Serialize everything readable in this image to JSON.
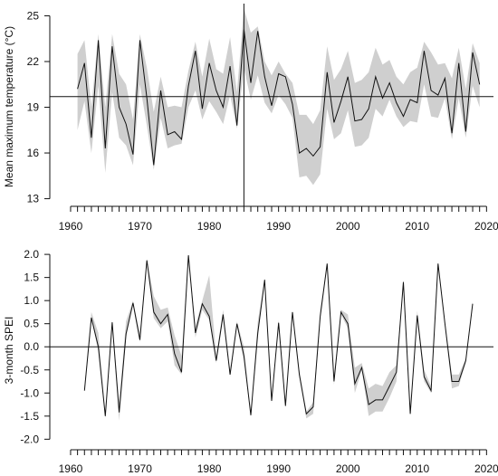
{
  "chart_data": [
    {
      "type": "line",
      "ylabel": "Mean maximum temperature (°C)",
      "xlabel": "",
      "xlim": [
        1957,
        2021
      ],
      "ylim": [
        12.5,
        25.8
      ],
      "y_ticks": [
        13,
        16,
        19,
        22,
        25
      ],
      "x_ticks": [
        1960,
        1970,
        1980,
        1990,
        2000,
        2010,
        2020
      ],
      "reference_hline": 19.7,
      "reference_vline": 1985,
      "band": "grey uncertainty band",
      "series": [
        {
          "x": [
            1961,
            1962,
            1963,
            1964,
            1965,
            1966,
            1967,
            1968,
            1969,
            1970,
            1971,
            1972,
            1973,
            1974,
            1975,
            1976,
            1977,
            1978,
            1979,
            1980,
            1981,
            1982,
            1983,
            1984,
            1985,
            1986,
            1987,
            1988,
            1989,
            1990,
            1991,
            1992,
            1993,
            1994,
            1995,
            1996,
            1997,
            1998,
            1999,
            2000,
            2001,
            2002,
            2003,
            2004,
            2005,
            2006,
            2007,
            2008,
            2009,
            2010,
            2011,
            2012,
            2013,
            2014,
            2015,
            2016,
            2017,
            2018,
            2019
          ],
          "values": [
            20.2,
            21.9,
            17.0,
            23.4,
            16.3,
            23.0,
            19.0,
            17.9,
            15.9,
            23.4,
            19.6,
            15.2,
            20.1,
            17.2,
            17.4,
            16.9,
            20.4,
            22.7,
            18.9,
            21.9,
            20.1,
            19.0,
            21.7,
            17.8,
            24.1,
            20.6,
            24.0,
            21.0,
            19.1,
            21.2,
            21.0,
            19.2,
            16.0,
            16.3,
            15.8,
            16.4,
            21.3,
            18.0,
            19.4,
            21.0,
            18.1,
            18.2,
            18.9,
            21.0,
            19.6,
            20.6,
            19.3,
            18.4,
            19.5,
            19.3,
            22.7,
            20.1,
            19.8,
            20.9,
            17.3,
            21.9,
            17.4,
            22.6,
            20.5
          ]
        }
      ],
      "band_lower": [
        17.5,
        19.4,
        16.0,
        20.4,
        14.7,
        20.0,
        17.0,
        16.5,
        15.2,
        20.5,
        17.8,
        14.9,
        18.3,
        16.3,
        16.5,
        16.6,
        19.0,
        20.1,
        18.2,
        19.4,
        18.7,
        17.9,
        19.8,
        17.6,
        21.6,
        19.5,
        21.1,
        19.3,
        18.6,
        19.8,
        19.2,
        18.3,
        14.4,
        14.5,
        13.9,
        14.6,
        18.9,
        16.9,
        17.3,
        18.8,
        16.4,
        16.5,
        17.0,
        18.9,
        18.4,
        19.5,
        18.4,
        17.7,
        18.1,
        18.0,
        20.5,
        18.4,
        18.3,
        19.6,
        16.9,
        19.6,
        17.0,
        20.4,
        19.0
      ],
      "band_upper": [
        22.5,
        23.4,
        19.0,
        23.8,
        19.0,
        23.8,
        21.2,
        20.5,
        18.2,
        23.8,
        21.6,
        18.7,
        21.0,
        19.0,
        19.1,
        19.0,
        21.4,
        23.3,
        21.0,
        23.5,
        21.5,
        21.2,
        23.6,
        20.0,
        25.5,
        23.9,
        24.3,
        22.0,
        21.1,
        22.0,
        21.2,
        20.6,
        18.5,
        18.5,
        17.9,
        18.8,
        23.0,
        20.8,
        21.5,
        22.7,
        20.6,
        20.8,
        21.3,
        22.9,
        21.8,
        22.1,
        21.0,
        20.5,
        21.3,
        21.6,
        23.3,
        22.6,
        21.8,
        21.9,
        20.9,
        22.9,
        20.2,
        23.2,
        21.9
      ]
    },
    {
      "type": "line",
      "ylabel": "3-month SPEI",
      "xlabel": "",
      "xlim": [
        1957,
        2021
      ],
      "ylim": [
        -2.15,
        2.1
      ],
      "y_ticks": [
        2.0,
        1.5,
        1.0,
        0.5,
        0.0,
        -0.5,
        -1.0,
        -1.5,
        -2.0
      ],
      "y_tick_labels": [
        "2.0",
        "1.5",
        "1.0",
        "0.5",
        "0.0",
        "-0.5",
        "-1.0",
        "-1.5",
        "-2.0"
      ],
      "x_ticks": [
        1960,
        1970,
        1980,
        1990,
        2000,
        2010,
        2020
      ],
      "reference_hline": 0.0,
      "band": "grey uncertainty band",
      "series": [
        {
          "x": [
            1962,
            1963,
            1964,
            1965,
            1966,
            1967,
            1968,
            1969,
            1970,
            1971,
            1972,
            1973,
            1974,
            1975,
            1976,
            1977,
            1978,
            1979,
            1980,
            1981,
            1982,
            1983,
            1984,
            1985,
            1986,
            1987,
            1988,
            1989,
            1990,
            1991,
            1992,
            1993,
            1994,
            1995,
            1996,
            1997,
            1998,
            1999,
            2000,
            2001,
            2002,
            2003,
            2004,
            2005,
            2006,
            2007,
            2008,
            2009,
            2010,
            2011,
            2012,
            2013,
            2014,
            2015,
            2016,
            2017,
            2018
          ],
          "values": [
            -0.95,
            0.63,
            0.0,
            -1.5,
            0.53,
            -1.42,
            0.28,
            0.95,
            0.15,
            1.87,
            0.75,
            0.5,
            0.7,
            -0.15,
            -0.55,
            1.98,
            0.3,
            0.93,
            0.66,
            -0.3,
            0.7,
            -0.6,
            0.5,
            -0.2,
            -1.48,
            0.3,
            1.45,
            -1.17,
            0.52,
            -1.28,
            0.75,
            -0.6,
            -1.45,
            -1.3,
            0.65,
            1.8,
            -0.75,
            0.75,
            0.5,
            -0.8,
            -0.45,
            -1.25,
            -1.15,
            -1.15,
            -0.85,
            -0.55,
            1.4,
            -1.45,
            0.68,
            -0.65,
            -0.95,
            1.8,
            0.5,
            -0.75,
            -0.75,
            -0.3,
            0.93
          ]
        }
      ],
      "band_lower": [
        -0.95,
        0.6,
        -0.1,
        -1.55,
        0.5,
        -1.6,
        0.2,
        0.9,
        0.1,
        1.82,
        0.62,
        0.4,
        0.55,
        -0.4,
        -0.6,
        1.9,
        0.2,
        0.8,
        0.58,
        -0.35,
        0.6,
        -0.65,
        0.45,
        -0.3,
        -1.52,
        0.2,
        1.4,
        -1.22,
        0.48,
        -1.3,
        0.7,
        -0.65,
        -1.55,
        -1.45,
        0.6,
        1.74,
        -0.82,
        0.7,
        0.4,
        -1.0,
        -0.5,
        -1.5,
        -1.4,
        -1.4,
        -1.1,
        -0.75,
        1.35,
        -1.47,
        0.6,
        -0.75,
        -1.0,
        1.75,
        0.45,
        -0.9,
        -0.85,
        -0.35,
        0.88
      ],
      "band_upper": [
        -0.85,
        0.75,
        0.3,
        -1.45,
        0.58,
        -1.2,
        0.55,
        1.0,
        0.3,
        1.9,
        1.1,
        0.8,
        0.85,
        0.25,
        -0.2,
        2.0,
        0.45,
        1.0,
        1.55,
        -0.2,
        0.8,
        -0.5,
        0.55,
        0.0,
        -1.45,
        0.55,
        1.48,
        -1.12,
        0.58,
        -1.2,
        0.78,
        -0.5,
        -1.4,
        -1.2,
        0.8,
        1.82,
        -0.6,
        0.8,
        0.7,
        -0.45,
        -0.35,
        -0.9,
        -0.8,
        -0.85,
        -0.55,
        -0.4,
        1.45,
        -1.42,
        0.78,
        -0.5,
        -0.85,
        1.82,
        0.55,
        -0.6,
        -0.6,
        -0.25,
        0.98
      ]
    }
  ]
}
